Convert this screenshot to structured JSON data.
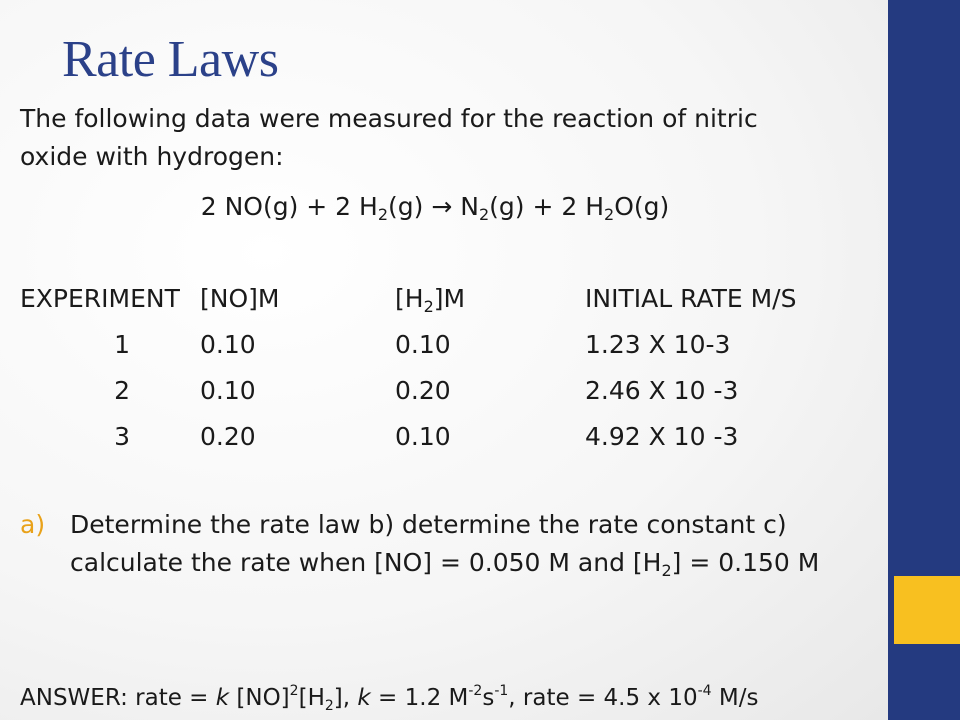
{
  "slide": {
    "title": "Rate Laws",
    "intro": "The following data were measured for the reaction of nitric oxide with hydrogen:",
    "equation": {
      "p1": "2 NO(g) + 2 H",
      "s1": "2",
      "p2": "(g)  ",
      "arrow": "→",
      "p3": " N",
      "s2": "2",
      "p4": "(g) + 2 H",
      "s3": "2",
      "p5": "O(g)"
    },
    "table": {
      "headers": {
        "experiment": "EXPERIMENT",
        "no": "[NO]M",
        "h2_pre": "[H",
        "h2_sub": "2",
        "h2_post": "]M",
        "rate": "INITIAL RATE M/S"
      },
      "rows": [
        {
          "exp": "1",
          "no": "0.10",
          "h2": "0.10",
          "rate": "1.23 X 10-3"
        },
        {
          "exp": "2",
          "no": "0.10",
          "h2": "0.20",
          "rate": "2.46 X 10 -3"
        },
        {
          "exp": "3",
          "no": "0.20",
          "h2": "0.10",
          "rate": "4.92 X 10 -3"
        }
      ]
    },
    "question": {
      "marker": "a)",
      "text_pre": "Determine the rate law b) determine the rate constant c) calculate the rate when [NO] = 0.050 M and [H",
      "sub": "2",
      "text_post": "] = 0.150 M"
    },
    "answer": {
      "p1": "ANSWER: rate = ",
      "k1": "k",
      "p2": " [NO]",
      "sup1": "2",
      "p3": "[H",
      "sub1": "2",
      "p4": "], ",
      "k2": "k",
      "p5": " = 1.2 M",
      "sup2": "-2",
      "p6": "s",
      "sup3": "-1",
      "p7": ", rate = 4.5 x 10",
      "sup4": "-4",
      "p8": " M/s"
    }
  },
  "colors": {
    "title": "#2b4189",
    "sidebar_blue": "#243a80",
    "sidebar_yellow": "#f8c020",
    "marker": "#e9a21a"
  }
}
